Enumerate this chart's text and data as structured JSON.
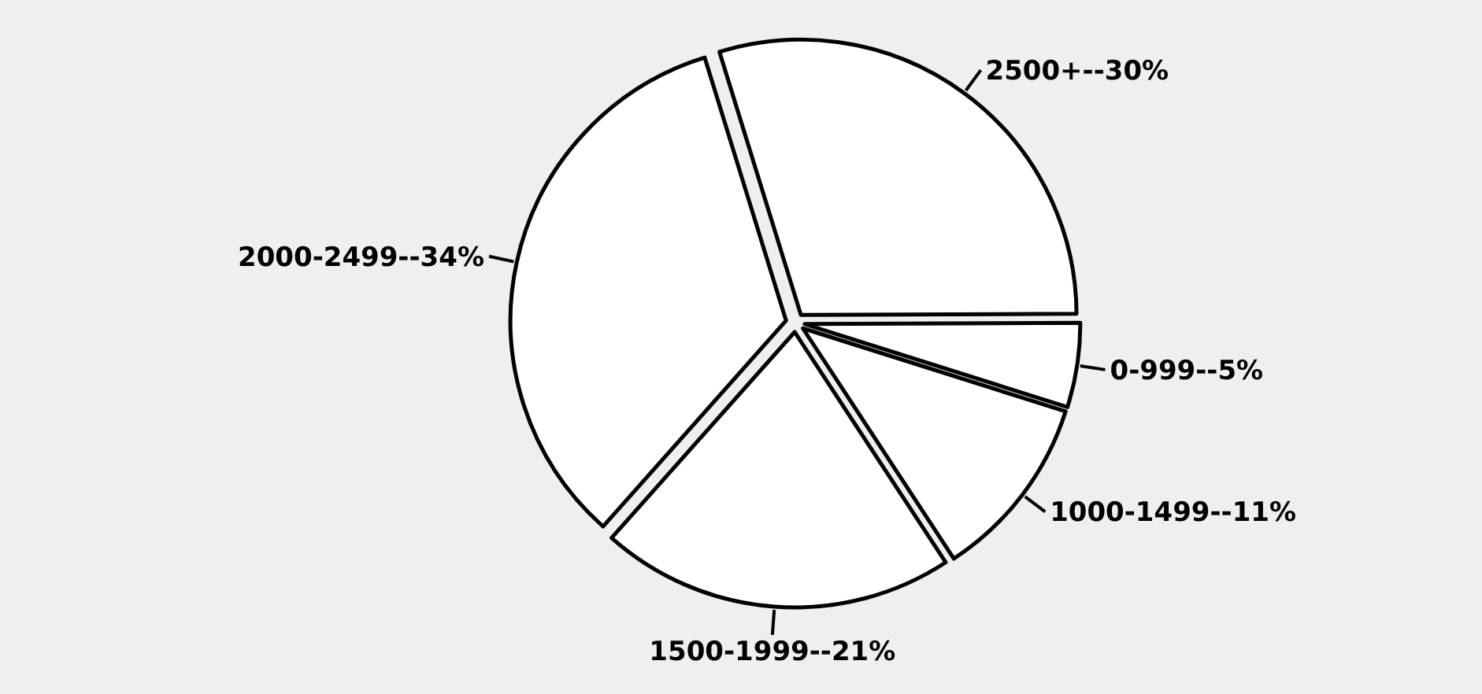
{
  "chart_data": {
    "type": "pie",
    "categories": [
      "2500+--",
      "0-999--",
      "1000-1499--",
      "1500-1999--",
      "2000-2499--"
    ],
    "values": [
      30,
      5,
      11,
      21,
      34
    ],
    "value_labels": [
      "30%",
      "5%",
      "11%",
      "21%",
      "34%"
    ],
    "colors": [
      "#ffffff",
      "#ffffff",
      "#ffffff",
      "#ffffff",
      "#ffffff"
    ]
  }
}
